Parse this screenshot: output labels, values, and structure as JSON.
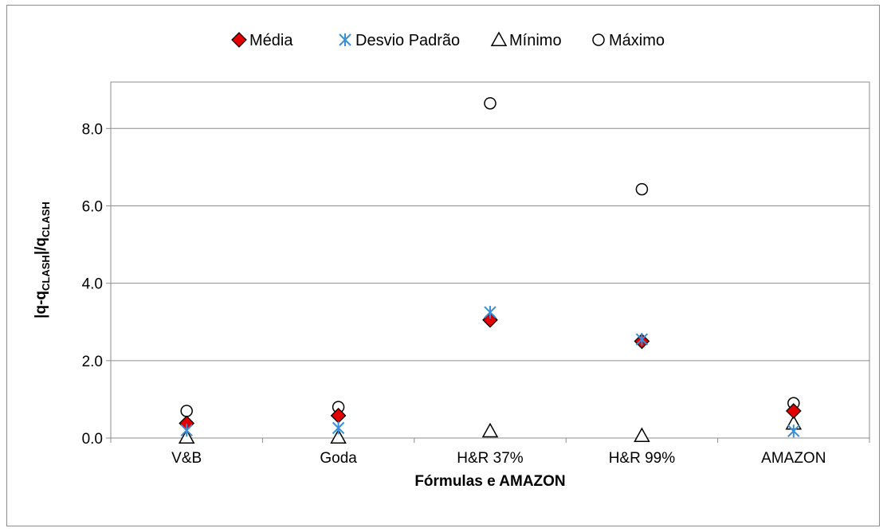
{
  "chart_data": {
    "type": "scatter",
    "title": "",
    "xlabel": "Fórmulas e AMAZON",
    "ylabel": {
      "base": "|q-q",
      "sub1": "CLASH",
      "mid": "|/q",
      "sub2": "CLASH"
    },
    "categories": [
      "V&B",
      "Goda",
      "H&R 37%",
      "H&R 99%",
      "AMAZON"
    ],
    "ylim": [
      0,
      9.2
    ],
    "yticks": [
      "0.0",
      "2.0",
      "4.0",
      "6.0",
      "8.0"
    ],
    "ytick_values": [
      0,
      2,
      4,
      6,
      8
    ],
    "grid": true,
    "legend_position": "top",
    "series": [
      {
        "name": "Média",
        "marker": "diamond",
        "color": "#e00000",
        "edge": "#000000",
        "values": [
          0.38,
          0.58,
          3.05,
          2.5,
          0.7
        ]
      },
      {
        "name": "Desvio Padrão",
        "marker": "asterisk",
        "color": "#3a8fd8",
        "edge": "#3a8fd8",
        "values": [
          0.2,
          0.26,
          3.25,
          2.55,
          0.18
        ]
      },
      {
        "name": "Mínimo",
        "marker": "triangle",
        "color": "#ffffff",
        "edge": "#000000",
        "values": [
          0.02,
          0.02,
          0.18,
          0.06,
          0.38
        ]
      },
      {
        "name": "Máximo",
        "marker": "circle",
        "color": "#ffffff",
        "edge": "#000000",
        "values": [
          0.7,
          0.8,
          8.65,
          6.43,
          0.9
        ]
      }
    ]
  }
}
